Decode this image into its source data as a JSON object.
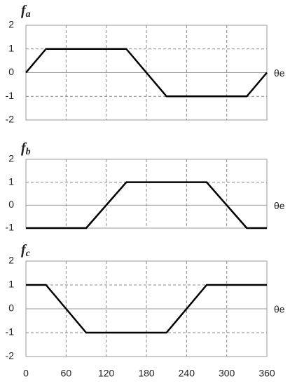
{
  "chart_data": [
    {
      "type": "line",
      "title": "f",
      "title_sub": "a",
      "x_label": "θe",
      "x": [
        0,
        30,
        150,
        210,
        330,
        360
      ],
      "series": [
        {
          "color": "#000000",
          "values": [
            0,
            1,
            1,
            -1,
            -1,
            0
          ]
        }
      ],
      "xlim": [
        0,
        360
      ],
      "xticks": [
        0,
        60,
        120,
        180,
        240,
        300,
        360
      ],
      "ylim": [
        -2,
        2
      ],
      "yticks": [
        2,
        1,
        0,
        -1,
        -2
      ],
      "grid": true
    },
    {
      "type": "line",
      "title": "f",
      "title_sub": "b",
      "x_label": "θe",
      "x": [
        0,
        90,
        150,
        270,
        330,
        360
      ],
      "series": [
        {
          "color": "#000000",
          "values": [
            -1,
            -1,
            1,
            1,
            -1,
            -1
          ]
        }
      ],
      "xlim": [
        0,
        360
      ],
      "xticks": [
        0,
        60,
        120,
        180,
        240,
        300,
        360
      ],
      "ylim": [
        -1,
        2
      ],
      "yticks": [
        2,
        1,
        0,
        -1
      ],
      "grid": true
    },
    {
      "type": "line",
      "title": "f",
      "title_sub": "c",
      "x_label": "θe",
      "x": [
        0,
        30,
        90,
        210,
        270,
        360
      ],
      "series": [
        {
          "color": "#000000",
          "values": [
            1,
            1,
            -1,
            -1,
            1,
            1
          ]
        }
      ],
      "xlim": [
        0,
        360
      ],
      "xticks": [
        0,
        60,
        120,
        180,
        240,
        300,
        360
      ],
      "ylim": [
        -2,
        2
      ],
      "yticks": [
        2,
        1,
        0,
        -1,
        -2
      ],
      "grid": true
    }
  ]
}
